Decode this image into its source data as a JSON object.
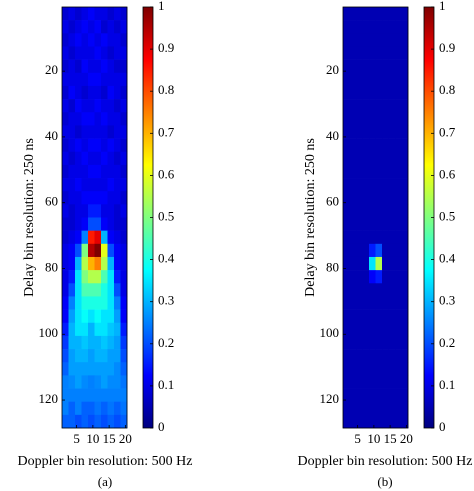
{
  "chart_data": [
    {
      "type": "heatmap",
      "colormap": "jet",
      "y_inverted": true,
      "xlabel": "Doppler bin resolution: 500 Hz",
      "ylabel": "Delay bin resolution: 250 ns",
      "caption": "(a)",
      "xlim": [
        0.5,
        20.5
      ],
      "ylim": [
        0.5,
        128.5
      ],
      "xticks": [
        5,
        10,
        15,
        20
      ],
      "yticks": [
        20,
        40,
        60,
        80,
        100,
        120
      ],
      "clim": [
        0,
        1
      ],
      "cticks": [
        0,
        0.1,
        0.2,
        0.3,
        0.4,
        0.5,
        0.6,
        0.7,
        0.8,
        0.9,
        1
      ],
      "x": [
        1.5,
        3.5,
        5.5,
        7.5,
        9.5,
        11.5,
        13.5,
        15.5,
        17.5,
        19.5
      ],
      "y": [
        2.5,
        6.5,
        10.5,
        14.5,
        18.5,
        22.5,
        26.5,
        30.5,
        34.5,
        38.5,
        42.5,
        46.5,
        50.5,
        54.5,
        58.5,
        62.5,
        66.5,
        70.5,
        74.5,
        78.5,
        82.5,
        86.5,
        90.5,
        94.5,
        98.5,
        102.5,
        106.5,
        110.5,
        114.5,
        118.5,
        122.5,
        126.5
      ],
      "z": [
        [
          0.08,
          0.1,
          0.08,
          0.1,
          0.12,
          0.1,
          0.1,
          0.08,
          0.1,
          0.08
        ],
        [
          0.1,
          0.08,
          0.1,
          0.12,
          0.1,
          0.12,
          0.08,
          0.1,
          0.08,
          0.1
        ],
        [
          0.08,
          0.1,
          0.12,
          0.1,
          0.12,
          0.1,
          0.12,
          0.1,
          0.1,
          0.08
        ],
        [
          0.1,
          0.08,
          0.1,
          0.1,
          0.1,
          0.12,
          0.1,
          0.08,
          0.1,
          0.1
        ],
        [
          0.08,
          0.1,
          0.08,
          0.12,
          0.1,
          0.1,
          0.12,
          0.1,
          0.08,
          0.08
        ],
        [
          0.1,
          0.1,
          0.1,
          0.1,
          0.12,
          0.12,
          0.1,
          0.1,
          0.1,
          0.1
        ],
        [
          0.08,
          0.12,
          0.1,
          0.08,
          0.1,
          0.1,
          0.08,
          0.12,
          0.1,
          0.08
        ],
        [
          0.1,
          0.08,
          0.12,
          0.1,
          0.1,
          0.12,
          0.1,
          0.1,
          0.08,
          0.1
        ],
        [
          0.08,
          0.1,
          0.1,
          0.12,
          0.12,
          0.1,
          0.12,
          0.1,
          0.1,
          0.08
        ],
        [
          0.1,
          0.1,
          0.08,
          0.1,
          0.1,
          0.1,
          0.1,
          0.08,
          0.1,
          0.1
        ],
        [
          0.08,
          0.1,
          0.12,
          0.1,
          0.12,
          0.12,
          0.1,
          0.12,
          0.1,
          0.08
        ],
        [
          0.1,
          0.08,
          0.1,
          0.12,
          0.1,
          0.1,
          0.12,
          0.1,
          0.08,
          0.1
        ],
        [
          0.08,
          0.1,
          0.1,
          0.1,
          0.12,
          0.12,
          0.1,
          0.1,
          0.1,
          0.08
        ],
        [
          0.1,
          0.1,
          0.12,
          0.1,
          0.1,
          0.1,
          0.1,
          0.12,
          0.1,
          0.1
        ],
        [
          0.08,
          0.1,
          0.1,
          0.12,
          0.12,
          0.12,
          0.12,
          0.1,
          0.1,
          0.08
        ],
        [
          0.1,
          0.08,
          0.1,
          0.1,
          0.15,
          0.15,
          0.1,
          0.1,
          0.08,
          0.1
        ],
        [
          0.08,
          0.08,
          0.1,
          0.12,
          0.2,
          0.2,
          0.12,
          0.1,
          0.08,
          0.08
        ],
        [
          0.08,
          0.1,
          0.12,
          0.25,
          0.85,
          0.9,
          0.3,
          0.12,
          0.1,
          0.08
        ],
        [
          0.1,
          0.12,
          0.2,
          0.5,
          0.95,
          1,
          0.6,
          0.2,
          0.12,
          0.1
        ],
        [
          0.1,
          0.12,
          0.3,
          0.55,
          0.7,
          0.75,
          0.55,
          0.3,
          0.12,
          0.1
        ],
        [
          0.1,
          0.15,
          0.35,
          0.5,
          0.55,
          0.55,
          0.45,
          0.35,
          0.15,
          0.1
        ],
        [
          0.1,
          0.2,
          0.35,
          0.45,
          0.45,
          0.45,
          0.4,
          0.35,
          0.2,
          0.1
        ],
        [
          0.12,
          0.25,
          0.35,
          0.4,
          0.4,
          0.4,
          0.4,
          0.35,
          0.25,
          0.12
        ],
        [
          0.12,
          0.28,
          0.35,
          0.38,
          0.35,
          0.38,
          0.35,
          0.35,
          0.28,
          0.12
        ],
        [
          0.15,
          0.3,
          0.35,
          0.35,
          0.3,
          0.35,
          0.35,
          0.32,
          0.3,
          0.15
        ],
        [
          0.18,
          0.3,
          0.3,
          0.32,
          0.3,
          0.3,
          0.32,
          0.3,
          0.28,
          0.18
        ],
        [
          0.2,
          0.28,
          0.3,
          0.3,
          0.28,
          0.3,
          0.3,
          0.28,
          0.28,
          0.2
        ],
        [
          0.22,
          0.28,
          0.28,
          0.28,
          0.28,
          0.28,
          0.28,
          0.28,
          0.26,
          0.22
        ],
        [
          0.25,
          0.26,
          0.28,
          0.26,
          0.25,
          0.26,
          0.28,
          0.26,
          0.26,
          0.24
        ],
        [
          0.25,
          0.25,
          0.25,
          0.25,
          0.25,
          0.25,
          0.25,
          0.25,
          0.25,
          0.25
        ],
        [
          0.25,
          0.22,
          0.25,
          0.22,
          0.22,
          0.24,
          0.22,
          0.24,
          0.22,
          0.24
        ],
        [
          0.22,
          0.22,
          0.2,
          0.22,
          0.2,
          0.22,
          0.2,
          0.22,
          0.2,
          0.22
        ]
      ]
    },
    {
      "type": "heatmap",
      "colormap": "jet",
      "y_inverted": true,
      "xlabel": "Doppler bin resolution: 500 Hz",
      "ylabel": "Delay bin resolution: 250 ns",
      "caption": "(b)",
      "xlim": [
        0.5,
        20.5
      ],
      "ylim": [
        0.5,
        128.5
      ],
      "xticks": [
        5,
        10,
        15,
        20
      ],
      "yticks": [
        20,
        40,
        60,
        80,
        100,
        120
      ],
      "clim": [
        0,
        1
      ],
      "cticks": [
        0,
        0.1,
        0.2,
        0.3,
        0.4,
        0.5,
        0.6,
        0.7,
        0.8,
        0.9,
        1
      ],
      "x": [
        1.5,
        3.5,
        5.5,
        7.5,
        9.5,
        11.5,
        13.5,
        15.5,
        17.5,
        19.5
      ],
      "y": [
        2.5,
        6.5,
        10.5,
        14.5,
        18.5,
        22.5,
        26.5,
        30.5,
        34.5,
        38.5,
        42.5,
        46.5,
        50.5,
        54.5,
        58.5,
        62.5,
        66.5,
        70.5,
        74.5,
        78.5,
        82.5,
        86.5,
        90.5,
        94.5,
        98.5,
        102.5,
        106.5,
        110.5,
        114.5,
        118.5,
        122.5,
        126.5
      ],
      "z": [
        [
          0.05,
          0.05,
          0.05,
          0.05,
          0.05,
          0.05,
          0.05,
          0.05,
          0.05,
          0.05
        ],
        [
          0.05,
          0.05,
          0.05,
          0.05,
          0.05,
          0.05,
          0.05,
          0.05,
          0.05,
          0.05
        ],
        [
          0.05,
          0.05,
          0.05,
          0.05,
          0.05,
          0.05,
          0.05,
          0.05,
          0.05,
          0.05
        ],
        [
          0.05,
          0.05,
          0.05,
          0.05,
          0.05,
          0.05,
          0.05,
          0.05,
          0.05,
          0.05
        ],
        [
          0.05,
          0.05,
          0.05,
          0.05,
          0.05,
          0.05,
          0.05,
          0.05,
          0.05,
          0.05
        ],
        [
          0.05,
          0.05,
          0.05,
          0.05,
          0.05,
          0.05,
          0.05,
          0.05,
          0.05,
          0.05
        ],
        [
          0.05,
          0.05,
          0.05,
          0.05,
          0.05,
          0.05,
          0.05,
          0.05,
          0.05,
          0.05
        ],
        [
          0.05,
          0.05,
          0.05,
          0.05,
          0.05,
          0.05,
          0.05,
          0.05,
          0.05,
          0.05
        ],
        [
          0.05,
          0.05,
          0.05,
          0.05,
          0.05,
          0.05,
          0.05,
          0.05,
          0.05,
          0.05
        ],
        [
          0.05,
          0.05,
          0.05,
          0.05,
          0.05,
          0.05,
          0.05,
          0.05,
          0.05,
          0.05
        ],
        [
          0.05,
          0.05,
          0.05,
          0.05,
          0.05,
          0.05,
          0.05,
          0.05,
          0.05,
          0.05
        ],
        [
          0.05,
          0.05,
          0.05,
          0.05,
          0.05,
          0.05,
          0.05,
          0.05,
          0.05,
          0.05
        ],
        [
          0.05,
          0.05,
          0.05,
          0.05,
          0.05,
          0.05,
          0.05,
          0.05,
          0.05,
          0.05
        ],
        [
          0.05,
          0.05,
          0.05,
          0.05,
          0.05,
          0.05,
          0.05,
          0.05,
          0.05,
          0.05
        ],
        [
          0.05,
          0.05,
          0.05,
          0.05,
          0.05,
          0.05,
          0.05,
          0.05,
          0.05,
          0.05
        ],
        [
          0.05,
          0.05,
          0.05,
          0.05,
          0.05,
          0.05,
          0.05,
          0.05,
          0.05,
          0.05
        ],
        [
          0.05,
          0.05,
          0.05,
          0.05,
          0.05,
          0.05,
          0.05,
          0.05,
          0.05,
          0.05
        ],
        [
          0.05,
          0.05,
          0.05,
          0.05,
          0.05,
          0.05,
          0.05,
          0.05,
          0.05,
          0.05
        ],
        [
          0.05,
          0.05,
          0.05,
          0.05,
          0.15,
          0.2,
          0.05,
          0.05,
          0.05,
          0.05
        ],
        [
          0.05,
          0.05,
          0.05,
          0.05,
          0.35,
          0.55,
          0.05,
          0.05,
          0.05,
          0.05
        ],
        [
          0.05,
          0.05,
          0.05,
          0.05,
          0.12,
          0.15,
          0.05,
          0.05,
          0.05,
          0.05
        ],
        [
          0.05,
          0.05,
          0.05,
          0.05,
          0.05,
          0.05,
          0.05,
          0.05,
          0.05,
          0.05
        ],
        [
          0.05,
          0.05,
          0.05,
          0.05,
          0.05,
          0.05,
          0.05,
          0.05,
          0.05,
          0.05
        ],
        [
          0.05,
          0.05,
          0.05,
          0.05,
          0.05,
          0.05,
          0.05,
          0.05,
          0.05,
          0.05
        ],
        [
          0.05,
          0.05,
          0.05,
          0.05,
          0.05,
          0.05,
          0.05,
          0.05,
          0.05,
          0.05
        ],
        [
          0.05,
          0.05,
          0.05,
          0.05,
          0.05,
          0.05,
          0.05,
          0.05,
          0.05,
          0.05
        ],
        [
          0.05,
          0.05,
          0.05,
          0.05,
          0.05,
          0.05,
          0.05,
          0.05,
          0.05,
          0.05
        ],
        [
          0.05,
          0.05,
          0.05,
          0.05,
          0.05,
          0.05,
          0.05,
          0.05,
          0.05,
          0.05
        ],
        [
          0.05,
          0.05,
          0.05,
          0.05,
          0.05,
          0.05,
          0.05,
          0.05,
          0.05,
          0.05
        ],
        [
          0.05,
          0.05,
          0.05,
          0.05,
          0.05,
          0.05,
          0.05,
          0.05,
          0.05,
          0.05
        ],
        [
          0.05,
          0.05,
          0.05,
          0.05,
          0.05,
          0.05,
          0.05,
          0.05,
          0.05,
          0.05
        ],
        [
          0.05,
          0.05,
          0.05,
          0.05,
          0.05,
          0.05,
          0.05,
          0.05,
          0.05,
          0.05
        ]
      ]
    }
  ]
}
